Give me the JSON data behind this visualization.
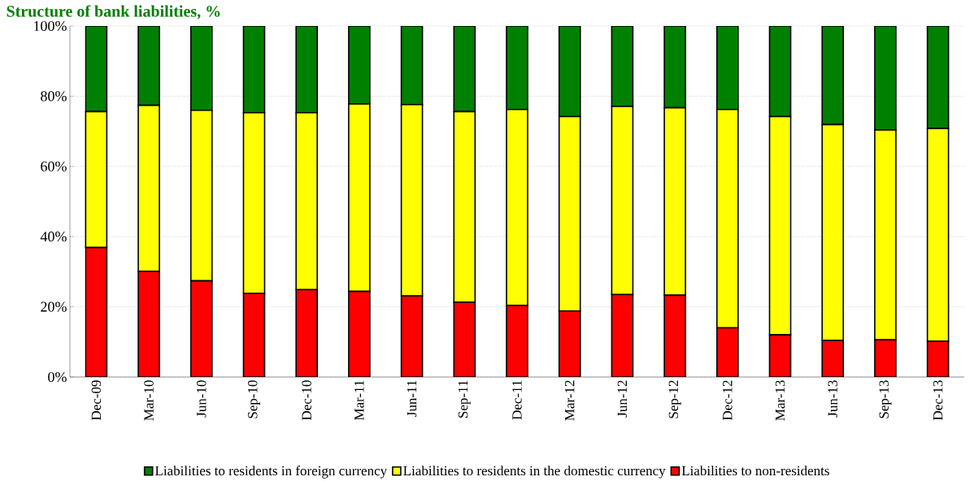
{
  "chart_data": {
    "type": "bar",
    "title": "Structure of bank liabilities, %",
    "stacked": true,
    "grid": "y",
    "legend": "bottom",
    "categories": [
      "Dec-09",
      "Mar-10",
      "Jun-10",
      "Sep-10",
      "Dec-10",
      "Mar-11",
      "Jun-11",
      "Sep-11",
      "Dec-11",
      "Mar-12",
      "Jun-12",
      "Sep-12",
      "Dec-12",
      "Mar-13",
      "Jun-13",
      "Sep-13",
      "Dec-13"
    ],
    "ylim": [
      0,
      100
    ],
    "yticks": [
      {
        "value": 0,
        "label": "0%"
      },
      {
        "value": 20,
        "label": "20%"
      },
      {
        "value": 40,
        "label": "40%"
      },
      {
        "value": 60,
        "label": "60%"
      },
      {
        "value": 80,
        "label": "80%"
      },
      {
        "value": 100,
        "label": "100%"
      }
    ],
    "series": [
      {
        "name": "Liabilities to non-residents",
        "color": "#ff0000",
        "values": [
          36.9,
          30.1,
          27.4,
          23.8,
          24.9,
          24.4,
          23.1,
          21.3,
          20.4,
          18.8,
          23.5,
          23.3,
          14.0,
          12.0,
          10.4,
          10.6,
          10.2
        ]
      },
      {
        "name": "Liabilities to residents in the domestic currency",
        "color": "#ffff00",
        "values": [
          38.7,
          47.3,
          48.6,
          51.5,
          50.4,
          53.4,
          54.5,
          54.3,
          55.8,
          55.4,
          53.6,
          53.4,
          62.2,
          62.2,
          61.5,
          59.8,
          60.6
        ]
      },
      {
        "name": "Liabilities to residents in foreign currency",
        "color": "#008000",
        "values": [
          24.4,
          22.6,
          24.0,
          24.7,
          24.7,
          22.2,
          22.4,
          24.4,
          23.8,
          25.8,
          22.9,
          23.3,
          23.8,
          25.8,
          28.1,
          29.6,
          29.2
        ]
      }
    ]
  }
}
